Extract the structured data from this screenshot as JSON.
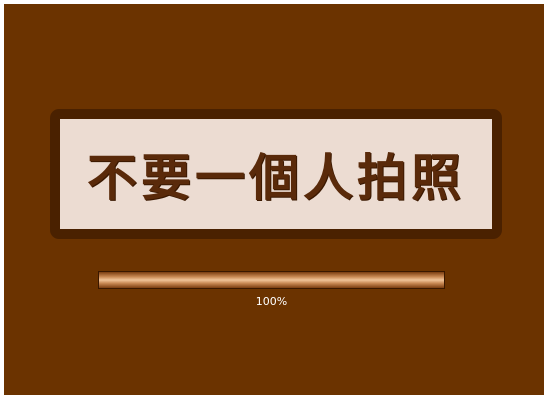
{
  "game": {
    "title": "不要一個人拍照"
  },
  "loading": {
    "progress": 1.0,
    "progress_label": "100%"
  },
  "colors": {
    "background": "#6b3300",
    "frame": "#4a2100",
    "card": "#ecdcd2",
    "title_text": "#5a2a0a"
  }
}
